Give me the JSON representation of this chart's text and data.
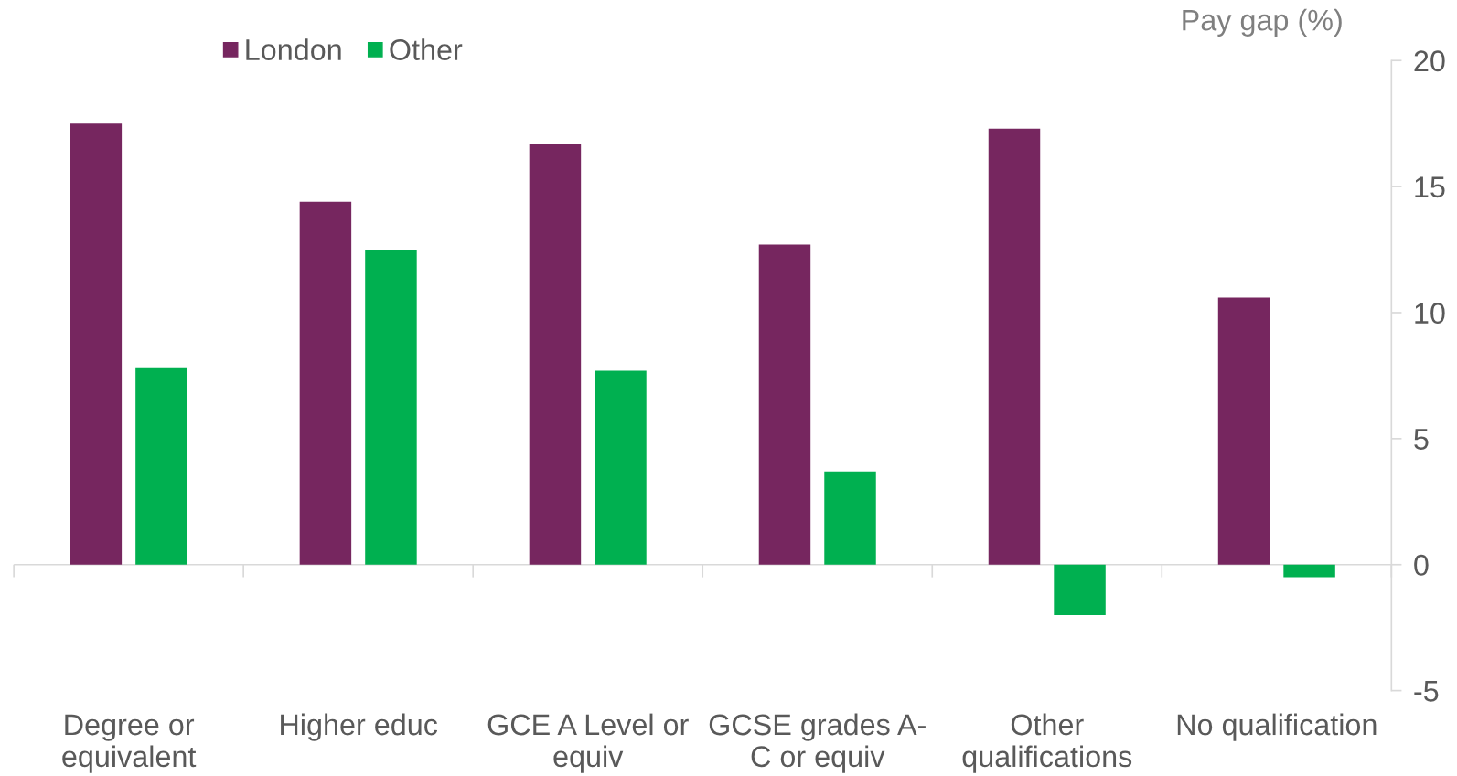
{
  "chart_data": {
    "type": "bar",
    "categories": [
      "Degree or\nequivalent",
      "Higher educ",
      "GCE A Level or\nequiv",
      "GCSE grades A-\nC or equiv",
      "Other\nqualifications",
      "No qualification"
    ],
    "series": [
      {
        "name": "London",
        "color": "#76265f",
        "values": [
          17.5,
          14.4,
          16.7,
          12.7,
          17.3,
          10.6
        ]
      },
      {
        "name": "Other",
        "color": "#00b050",
        "values": [
          7.8,
          12.5,
          7.7,
          3.7,
          -2.0,
          -0.5
        ]
      }
    ],
    "ylabel": "Pay gap (%)",
    "ylim": [
      -5,
      20
    ],
    "yticks": [
      -5,
      0,
      5,
      10,
      15,
      20
    ],
    "ref_lines": [
      {
        "axis": "y",
        "value": 0,
        "color": "#d9d9d9"
      }
    ],
    "grid": false,
    "legend": "top left"
  }
}
